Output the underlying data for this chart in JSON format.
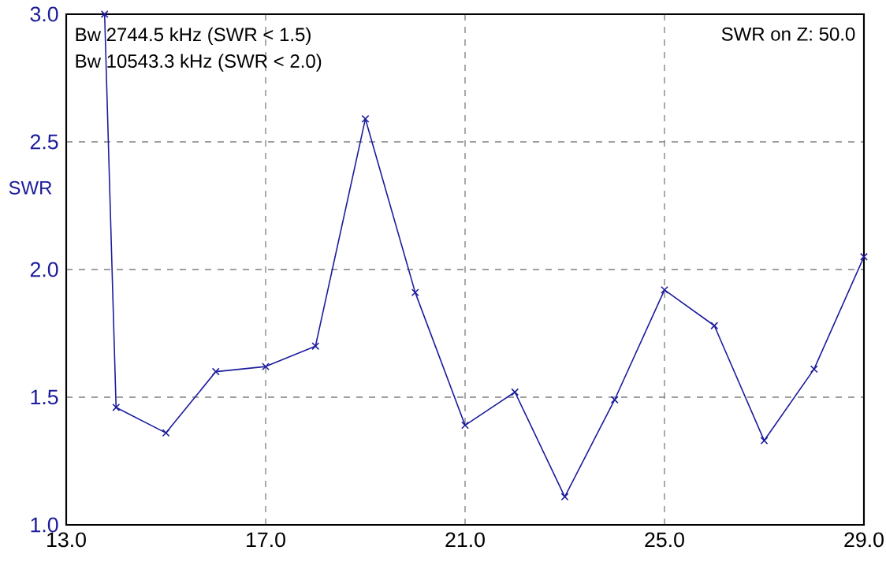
{
  "chart_data": {
    "type": "line",
    "ylabel": "SWR",
    "annotations": [
      "Bw 2744.5 kHz (SWR < 1.5)",
      "Bw 10543.3 kHz (SWR < 2.0)",
      "SWR on Z: 50.0"
    ],
    "x": [
      13.77,
      14,
      15,
      16,
      17,
      18,
      19,
      20,
      21,
      22,
      23,
      24,
      25,
      26,
      27,
      28,
      29
    ],
    "series": [
      {
        "color": "#1c1c9c",
        "values": [
          3.0,
          1.46,
          1.36,
          1.6,
          1.62,
          1.7,
          2.59,
          1.91,
          1.39,
          1.52,
          1.11,
          1.49,
          1.92,
          1.78,
          1.33,
          1.61,
          2.05
        ]
      }
    ],
    "xlim": [
      13,
      29
    ],
    "ylim": [
      1,
      3
    ],
    "xticks": [
      {
        "value": 13,
        "label": "13.0"
      },
      {
        "value": 17,
        "label": "17.0"
      },
      {
        "value": 21,
        "label": "21.0"
      },
      {
        "value": 25,
        "label": "25.0"
      },
      {
        "value": 29,
        "label": "29.0"
      }
    ],
    "yticks": [
      {
        "value": 1,
        "label": "1.0"
      },
      {
        "value": 1.5,
        "label": "1.5"
      },
      {
        "value": 2,
        "label": "2.0"
      },
      {
        "value": 2.5,
        "label": "2.5"
      },
      {
        "value": 3,
        "label": "3.0"
      }
    ],
    "grid": true,
    "marker": "cross",
    "line_style": "solid"
  }
}
